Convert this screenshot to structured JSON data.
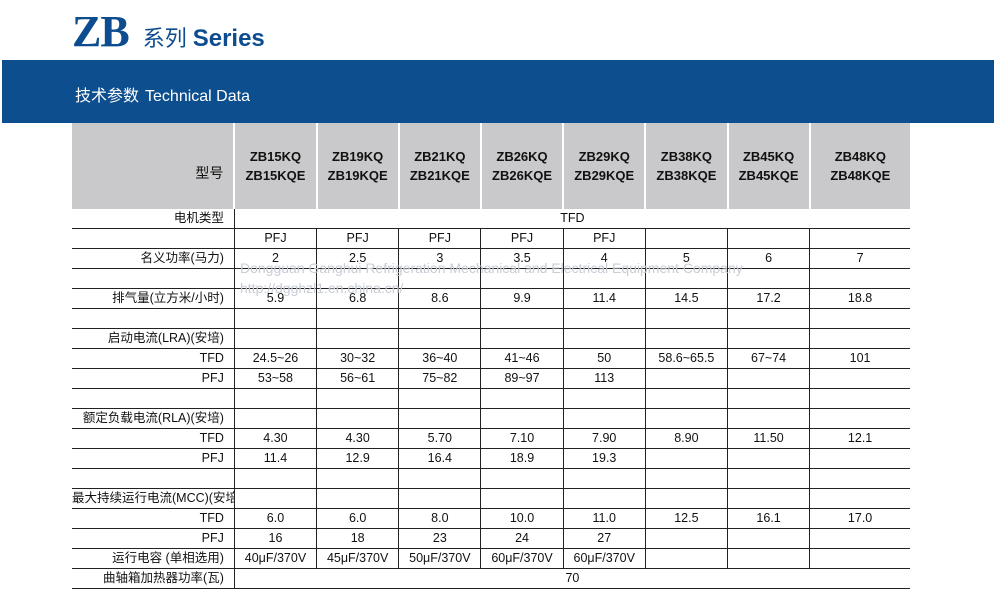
{
  "brand": {
    "logo": "ZB",
    "series_cn": "系列",
    "series_en": "Series"
  },
  "band": {
    "title_cn": "技术参数",
    "title_en": "Technical Data"
  },
  "header": {
    "label": "型号",
    "models": [
      [
        "ZB15KQ",
        "ZB15KQE"
      ],
      [
        "ZB19KQ",
        "ZB19KQE"
      ],
      [
        "ZB21KQ",
        "ZB21KQE"
      ],
      [
        "ZB26KQ",
        "ZB26KQE"
      ],
      [
        "ZB29KQ",
        "ZB29KQE"
      ],
      [
        "ZB38KQ",
        "ZB38KQE"
      ],
      [
        "ZB45KQ",
        "ZB45KQE"
      ],
      [
        "ZB48KQ",
        "ZB48KQE"
      ]
    ]
  },
  "rows": {
    "motor_type_label": "电机类型",
    "motor_type_all": "TFD",
    "motor_type_pfj": [
      "PFJ",
      "PFJ",
      "PFJ",
      "PFJ",
      "PFJ",
      "",
      "",
      ""
    ],
    "power_label": "名义功率(马力)",
    "power": [
      "2",
      "2.5",
      "3",
      "3.5",
      "4",
      "5",
      "6",
      "7"
    ],
    "displacement_label": "排气量(立方米/小时)",
    "displacement": [
      "5.9",
      "6.8",
      "8.6",
      "9.9",
      "11.4",
      "14.5",
      "17.2",
      "18.8"
    ],
    "lra_label": "启动电流(LRA)(安培)",
    "lra_tfd_label": "TFD",
    "lra_tfd": [
      "24.5~26",
      "30~32",
      "36~40",
      "41~46",
      "50",
      "58.6~65.5",
      "67~74",
      "101"
    ],
    "lra_pfj_label": "PFJ",
    "lra_pfj": [
      "53~58",
      "56~61",
      "75~82",
      "89~97",
      "113",
      "",
      "",
      ""
    ],
    "rla_label": "额定负载电流(RLA)(安培)",
    "rla_tfd_label": "TFD",
    "rla_tfd": [
      "4.30",
      "4.30",
      "5.70",
      "7.10",
      "7.90",
      "8.90",
      "11.50",
      "12.1"
    ],
    "rla_pfj_label": "PFJ",
    "rla_pfj": [
      "11.4",
      "12.9",
      "16.4",
      "18.9",
      "19.3",
      "",
      "",
      ""
    ],
    "mcc_label": "最大持续运行电流(MCC)(安培)",
    "mcc_tfd_label": "TFD",
    "mcc_tfd": [
      "6.0",
      "6.0",
      "8.0",
      "10.0",
      "11.0",
      "12.5",
      "16.1",
      "17.0"
    ],
    "mcc_pfj_label": "PFJ",
    "mcc_pfj": [
      "16",
      "18",
      "23",
      "24",
      "27",
      "",
      "",
      ""
    ],
    "cap_label": "运行电容 (单相选用)",
    "cap": [
      "40μF/370V",
      "45μF/370V",
      "50μF/370V",
      "60μF/370V",
      "60μF/370V",
      "",
      "",
      ""
    ],
    "heater_label": "曲轴箱加热器功率(瓦)",
    "heater_all": "70"
  },
  "watermark": {
    "line1": "Dongguan Ganghui  Refrigeration Mechanical and Electrical Equipment Company",
    "line2": "http://dgghzl1.en.china.cn/"
  },
  "colors": {
    "brand_blue": "#0c4c8f",
    "band_blue": "#0c4e8e",
    "header_gray": "#c9c9cb"
  }
}
